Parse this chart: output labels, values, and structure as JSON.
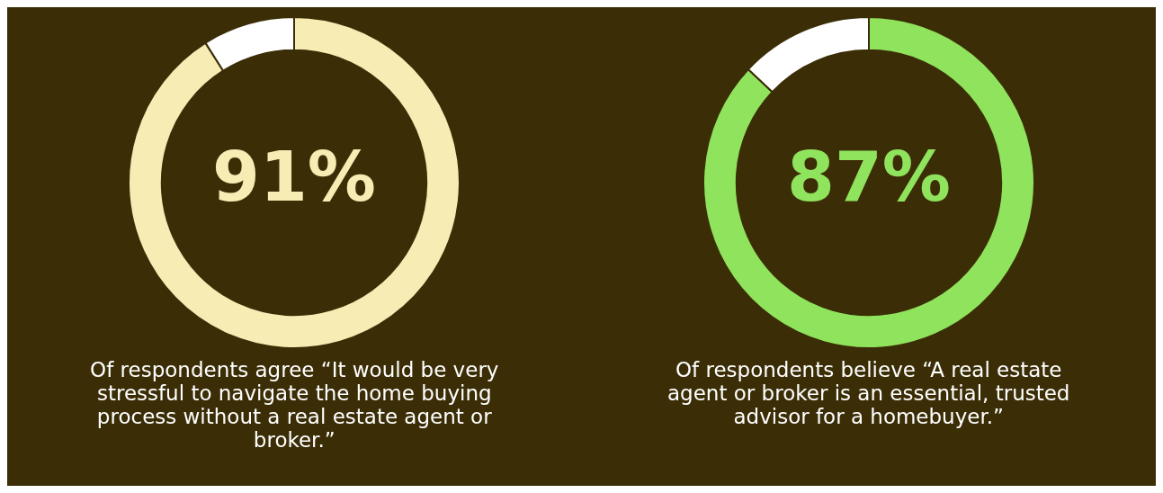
{
  "chart_data": [
    {
      "type": "donut",
      "categories": [
        null,
        null
      ],
      "values": [
        91,
        9
      ],
      "colors": [
        "#f6ecb4",
        "#ffffff"
      ],
      "value_labels": [
        "91%",
        null
      ],
      "legend": false,
      "annotations": [
        "Of respondents agree “It would be very stressful to navigate the home buying process without a real estate agent or broker.”"
      ]
    },
    {
      "type": "donut",
      "categories": [
        null,
        null
      ],
      "values": [
        87,
        13
      ],
      "colors": [
        "#90e35c",
        "#ffffff"
      ],
      "value_labels": [
        "87%",
        null
      ],
      "legend": false,
      "annotations": [
        "Of respondents believe “A real estate agent or broker is an essential, trusted advisor for a homebuyer.”"
      ]
    }
  ]
}
